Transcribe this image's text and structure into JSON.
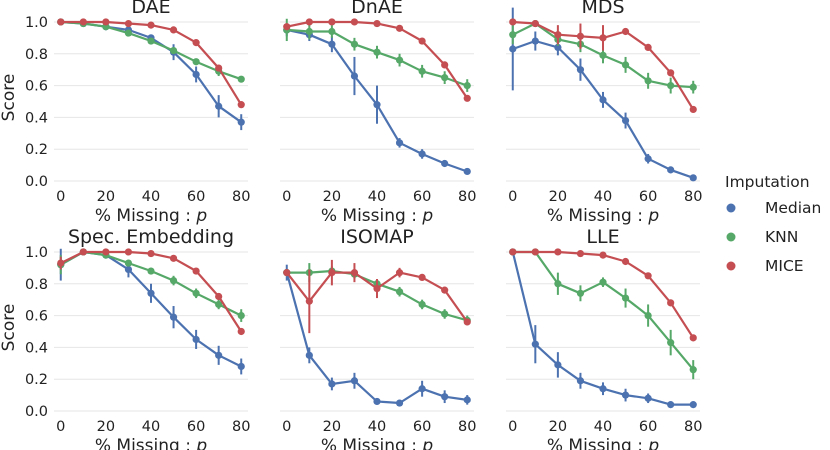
{
  "colors": {
    "Median": "#4c72b0",
    "KNN": "#55a868",
    "MICE": "#c44e52"
  },
  "legend": {
    "title": "Imputation",
    "items": [
      "Median",
      "KNN",
      "MICE"
    ],
    "placement": "right"
  },
  "x_tick_labels": [
    "0",
    "20",
    "40",
    "60",
    "80"
  ],
  "y_tick_labels": [
    "0.0",
    "0.2",
    "0.4",
    "0.6",
    "0.8",
    "1.0"
  ],
  "chart_data": [
    {
      "type": "line",
      "title": "DAE",
      "xlabel": "% Missing : p",
      "ylabel": "Score",
      "x": [
        0,
        10,
        20,
        30,
        40,
        50,
        60,
        70,
        80
      ],
      "xlim": [
        -3,
        83
      ],
      "ylim": [
        0,
        1.05
      ],
      "series": [
        {
          "name": "Median",
          "values": [
            1.0,
            0.99,
            0.97,
            0.95,
            0.9,
            0.81,
            0.67,
            0.47,
            0.37
          ],
          "err": [
            0,
            0.01,
            0.01,
            0.01,
            0.02,
            0.05,
            0.05,
            0.07,
            0.05
          ]
        },
        {
          "name": "KNN",
          "values": [
            1.0,
            0.99,
            0.97,
            0.93,
            0.88,
            0.82,
            0.75,
            0.69,
            0.64
          ],
          "err": [
            0,
            0.01,
            0.01,
            0.01,
            0.01,
            0.02,
            0.02,
            0.03,
            0.02
          ]
        },
        {
          "name": "MICE",
          "values": [
            1.0,
            1.0,
            1.0,
            0.99,
            0.98,
            0.95,
            0.87,
            0.71,
            0.48
          ],
          "err": [
            0,
            0,
            0,
            0.01,
            0.01,
            0.01,
            0.01,
            0.02,
            0.02
          ]
        }
      ]
    },
    {
      "type": "line",
      "title": "DnAE",
      "xlabel": "% Missing : p",
      "ylabel": "Score",
      "x": [
        0,
        10,
        20,
        30,
        40,
        50,
        60,
        70,
        80
      ],
      "xlim": [
        -3,
        83
      ],
      "ylim": [
        0,
        1.05
      ],
      "series": [
        {
          "name": "Median",
          "values": [
            0.95,
            0.92,
            0.86,
            0.66,
            0.48,
            0.24,
            0.17,
            0.11,
            0.06
          ],
          "err": [
            0.04,
            0.04,
            0.05,
            0.12,
            0.12,
            0.03,
            0.03,
            0.02,
            0.01
          ]
        },
        {
          "name": "KNN",
          "values": [
            0.95,
            0.94,
            0.94,
            0.86,
            0.81,
            0.76,
            0.69,
            0.65,
            0.6
          ],
          "err": [
            0.07,
            0.05,
            0.04,
            0.04,
            0.04,
            0.04,
            0.04,
            0.04,
            0.04
          ]
        },
        {
          "name": "MICE",
          "values": [
            0.97,
            1.0,
            1.0,
            1.0,
            0.99,
            0.96,
            0.88,
            0.73,
            0.52
          ],
          "err": [
            0.02,
            0,
            0,
            0,
            0.01,
            0.01,
            0.01,
            0.02,
            0.02
          ]
        }
      ]
    },
    {
      "type": "line",
      "title": "MDS",
      "xlabel": "% Missing : p",
      "ylabel": "Score",
      "x": [
        0,
        10,
        20,
        30,
        40,
        50,
        60,
        70,
        80
      ],
      "xlim": [
        -3,
        83
      ],
      "ylim": [
        0,
        1.05
      ],
      "series": [
        {
          "name": "Median",
          "values": [
            0.83,
            0.88,
            0.84,
            0.7,
            0.51,
            0.38,
            0.14,
            0.07,
            0.02
          ],
          "err": [
            0.26,
            0.06,
            0.05,
            0.07,
            0.05,
            0.05,
            0.03,
            0.02,
            0.01
          ]
        },
        {
          "name": "KNN",
          "values": [
            0.92,
            0.99,
            0.89,
            0.86,
            0.79,
            0.73,
            0.63,
            0.6,
            0.59
          ],
          "err": [
            0.06,
            0.01,
            0.04,
            0.05,
            0.05,
            0.05,
            0.05,
            0.05,
            0.04
          ]
        },
        {
          "name": "MICE",
          "values": [
            1.0,
            0.99,
            0.92,
            0.91,
            0.9,
            0.94,
            0.84,
            0.68,
            0.45
          ],
          "err": [
            0,
            0.01,
            0.06,
            0.08,
            0.08,
            0.01,
            0.01,
            0.02,
            0.02
          ]
        }
      ]
    },
    {
      "type": "line",
      "title": "Spec. Embedding",
      "xlabel": "% Missing : p",
      "ylabel": "Score",
      "x": [
        0,
        10,
        20,
        30,
        40,
        50,
        60,
        70,
        80
      ],
      "xlim": [
        -3,
        83
      ],
      "ylim": [
        0,
        1.05
      ],
      "series": [
        {
          "name": "Median",
          "values": [
            0.92,
            1.0,
            0.98,
            0.89,
            0.74,
            0.59,
            0.45,
            0.35,
            0.28
          ],
          "err": [
            0.1,
            0.01,
            0.02,
            0.05,
            0.06,
            0.07,
            0.06,
            0.06,
            0.05
          ]
        },
        {
          "name": "KNN",
          "values": [
            0.92,
            1.0,
            0.98,
            0.93,
            0.88,
            0.82,
            0.74,
            0.67,
            0.6
          ],
          "err": [
            0.06,
            0.01,
            0.01,
            0.02,
            0.02,
            0.03,
            0.03,
            0.03,
            0.04
          ]
        },
        {
          "name": "MICE",
          "values": [
            0.93,
            1.0,
            1.0,
            1.0,
            0.99,
            0.96,
            0.88,
            0.72,
            0.5
          ],
          "err": [
            0.04,
            0,
            0,
            0,
            0.01,
            0.01,
            0.01,
            0.02,
            0.02
          ]
        }
      ]
    },
    {
      "type": "line",
      "title": "ISOMAP",
      "xlabel": "% Missing : p",
      "ylabel": "Score",
      "x": [
        0,
        10,
        20,
        30,
        40,
        50,
        60,
        70,
        80
      ],
      "xlim": [
        -3,
        83
      ],
      "ylim": [
        0,
        1.05
      ],
      "series": [
        {
          "name": "Median",
          "values": [
            0.87,
            0.35,
            0.17,
            0.19,
            0.06,
            0.05,
            0.14,
            0.09,
            0.07
          ],
          "err": [
            0.05,
            0.05,
            0.04,
            0.05,
            0.02,
            0.02,
            0.05,
            0.04,
            0.03
          ]
        },
        {
          "name": "KNN",
          "values": [
            0.87,
            0.87,
            0.88,
            0.86,
            0.8,
            0.75,
            0.67,
            0.61,
            0.57
          ],
          "err": [
            0.02,
            0.06,
            0.03,
            0.03,
            0.03,
            0.03,
            0.03,
            0.03,
            0.03
          ]
        },
        {
          "name": "MICE",
          "values": [
            0.87,
            0.69,
            0.87,
            0.87,
            0.77,
            0.87,
            0.84,
            0.76,
            0.56
          ],
          "err": [
            0.02,
            0.2,
            0.08,
            0.06,
            0.06,
            0.03,
            0.02,
            0.02,
            0.02
          ]
        }
      ]
    },
    {
      "type": "line",
      "title": "LLE",
      "xlabel": "% Missing : p",
      "ylabel": "Score",
      "x": [
        0,
        10,
        20,
        30,
        40,
        50,
        60,
        70,
        80
      ],
      "xlim": [
        -3,
        83
      ],
      "ylim": [
        0,
        1.05
      ],
      "series": [
        {
          "name": "Median",
          "values": [
            1.0,
            0.42,
            0.29,
            0.19,
            0.14,
            0.1,
            0.08,
            0.04,
            0.04
          ],
          "err": [
            0,
            0.12,
            0.08,
            0.05,
            0.04,
            0.04,
            0.03,
            0.01,
            0.01
          ]
        },
        {
          "name": "KNN",
          "values": [
            1.0,
            1.0,
            0.8,
            0.74,
            0.81,
            0.71,
            0.6,
            0.43,
            0.26
          ],
          "err": [
            0,
            0,
            0.07,
            0.05,
            0.03,
            0.06,
            0.07,
            0.08,
            0.06
          ]
        },
        {
          "name": "MICE",
          "values": [
            1.0,
            1.0,
            1.0,
            0.99,
            0.98,
            0.94,
            0.85,
            0.68,
            0.46
          ],
          "err": [
            0,
            0,
            0,
            0.01,
            0.01,
            0.01,
            0.01,
            0.02,
            0.02
          ]
        }
      ]
    }
  ]
}
